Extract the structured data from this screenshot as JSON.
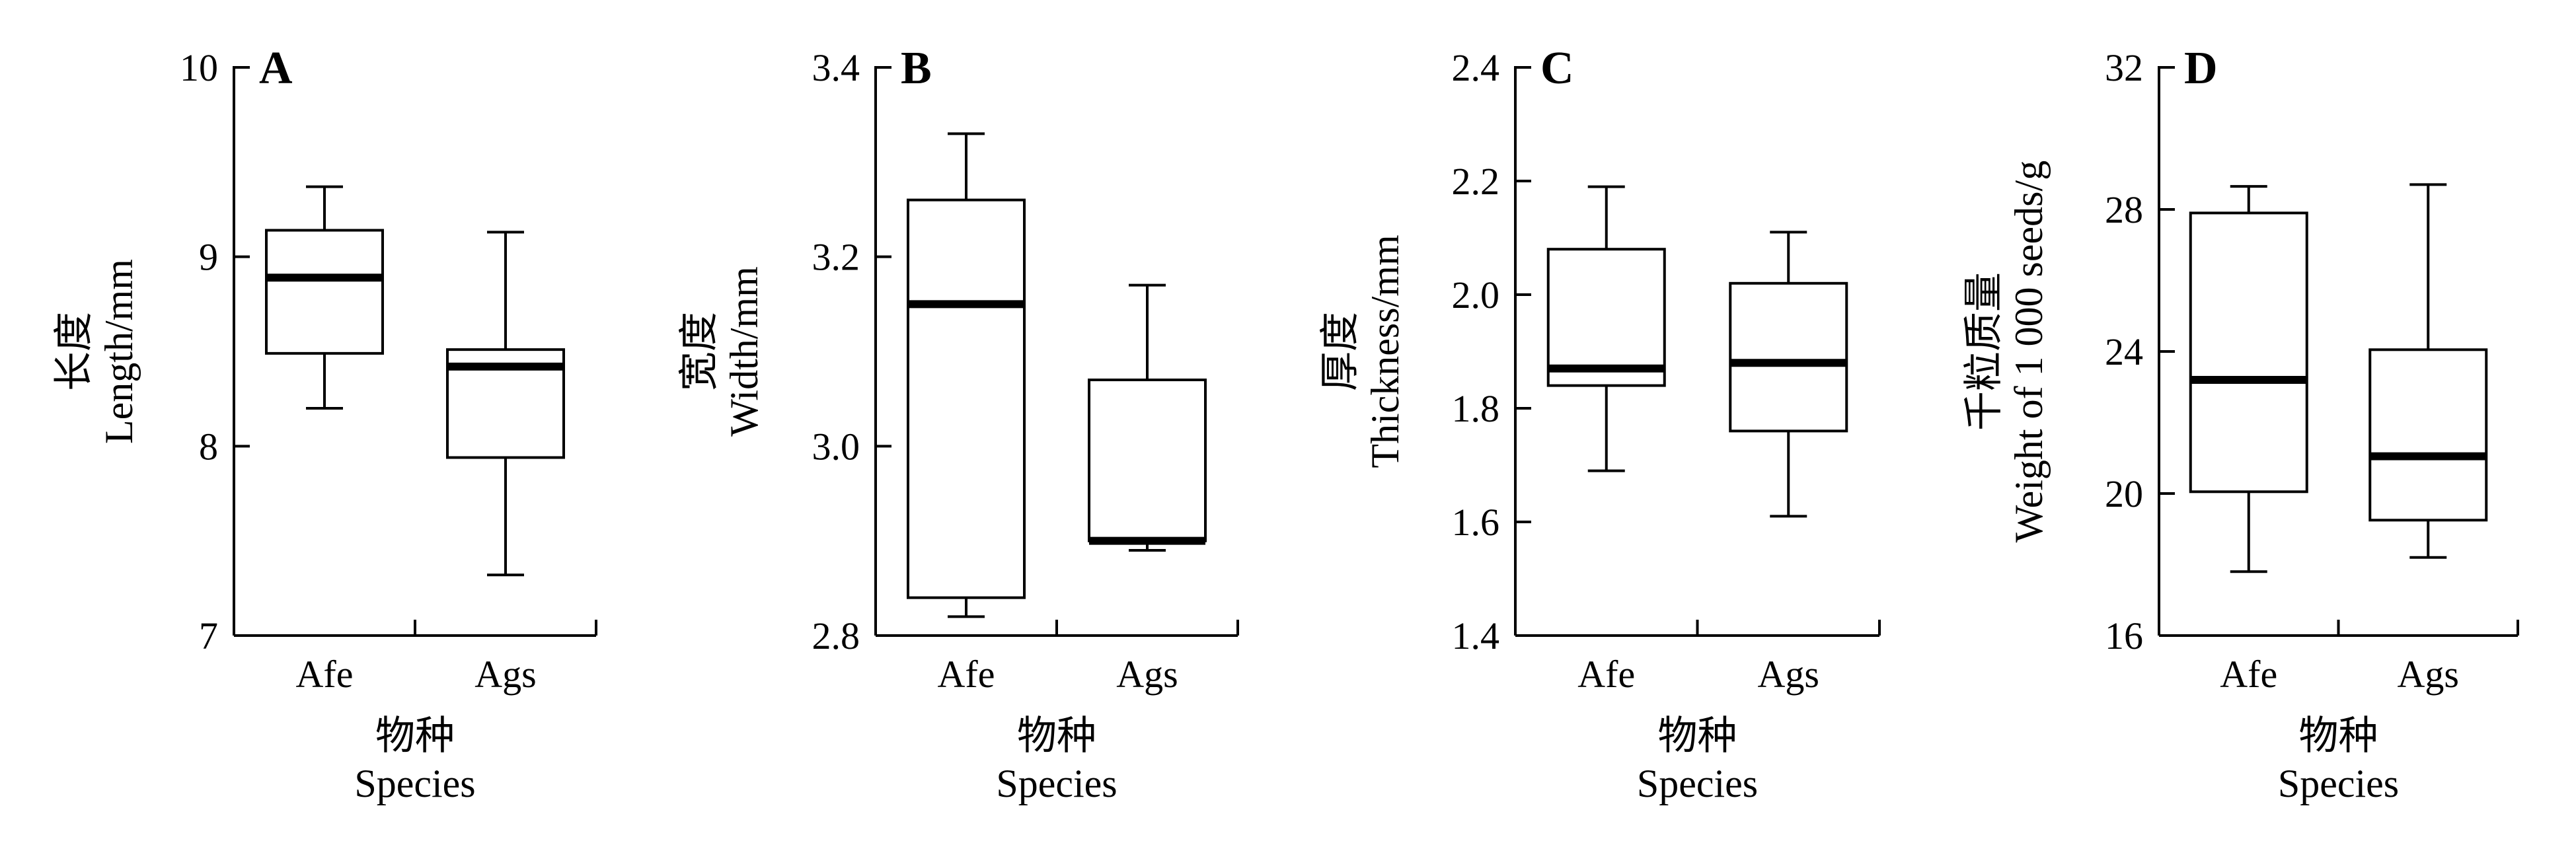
{
  "chart_data": [
    {
      "type": "box",
      "panel": "A",
      "ylabel_cn": "长度",
      "ylabel_en": "Length/mm",
      "xlabel_cn": "物种",
      "xlabel_en": "Species",
      "categories": [
        "Afe",
        "Ags"
      ],
      "ylim": [
        7,
        10
      ],
      "yticks": [
        7,
        8,
        9,
        10
      ],
      "ytick_labels": [
        "7",
        "8",
        "9",
        "10"
      ],
      "boxes": [
        {
          "min": 8.2,
          "q1": 8.49,
          "median": 8.89,
          "q3": 9.14,
          "max": 9.37
        },
        {
          "min": 7.32,
          "q1": 7.94,
          "median": 8.42,
          "q3": 8.51,
          "max": 9.13
        }
      ]
    },
    {
      "type": "box",
      "panel": "B",
      "ylabel_cn": "宽度",
      "ylabel_en": "Width/mm",
      "xlabel_cn": "物种",
      "xlabel_en": "Species",
      "categories": [
        "Afe",
        "Ags"
      ],
      "ylim": [
        2.8,
        3.4
      ],
      "yticks": [
        2.8,
        3.0,
        3.2,
        3.4
      ],
      "ytick_labels": [
        "2.8",
        "3.0",
        "3.2",
        "3.4"
      ],
      "boxes": [
        {
          "min": 2.82,
          "q1": 2.84,
          "median": 3.15,
          "q3": 3.26,
          "max": 3.33
        },
        {
          "min": 2.89,
          "q1": 2.9,
          "median": 2.9,
          "q3": 3.07,
          "max": 3.17
        }
      ]
    },
    {
      "type": "box",
      "panel": "C",
      "ylabel_cn": "厚度",
      "ylabel_en": "Thickness/mm",
      "xlabel_cn": "物种",
      "xlabel_en": "Species",
      "categories": [
        "Afe",
        "Ags"
      ],
      "ylim": [
        1.4,
        2.4
      ],
      "yticks": [
        1.4,
        1.6,
        1.8,
        2.0,
        2.2,
        2.4
      ],
      "ytick_labels": [
        "1.4",
        "1.6",
        "1.8",
        "2.0",
        "2.2",
        "2.4"
      ],
      "boxes": [
        {
          "min": 1.69,
          "q1": 1.84,
          "median": 1.87,
          "q3": 2.08,
          "max": 2.19
        },
        {
          "min": 1.61,
          "q1": 1.76,
          "median": 1.88,
          "q3": 2.02,
          "max": 2.11
        }
      ]
    },
    {
      "type": "box",
      "panel": "D",
      "ylabel_cn": "千粒质量",
      "ylabel_en": "Weight of 1 000 seeds/g",
      "xlabel_cn": "物种",
      "xlabel_en": "Species",
      "categories": [
        "Afe",
        "Ags"
      ],
      "ylim": [
        16,
        32
      ],
      "yticks": [
        16,
        20,
        24,
        28,
        32
      ],
      "ytick_labels": [
        "16",
        "20",
        "24",
        "28",
        "32"
      ],
      "boxes": [
        {
          "min": 17.8,
          "q1": 20.05,
          "median": 23.2,
          "q3": 27.9,
          "max": 28.65
        },
        {
          "min": 18.2,
          "q1": 19.25,
          "median": 21.05,
          "q3": 24.05,
          "max": 28.7
        }
      ]
    }
  ]
}
